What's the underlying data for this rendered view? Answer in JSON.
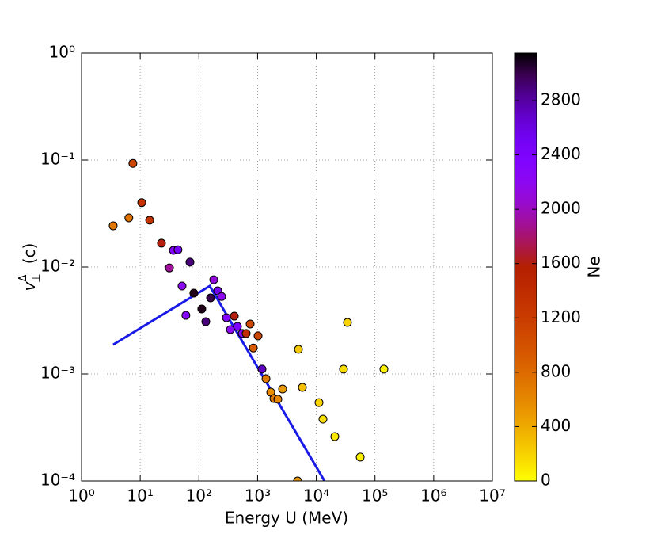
{
  "chart_data": {
    "type": "scatter",
    "xlabel": "Energy U (MeV)",
    "ylabel": {
      "symbol": "v",
      "superscript": "Δ",
      "subscript": "⊥",
      "unit": "(c)"
    },
    "xscale": "log",
    "yscale": "log",
    "xlim": [
      1,
      10000000
    ],
    "ylim": [
      0.0001,
      1
    ],
    "xticks": [
      {
        "value": 1,
        "label": "10⁰"
      },
      {
        "value": 10,
        "label": "10¹"
      },
      {
        "value": 100,
        "label": "10²"
      },
      {
        "value": 1000,
        "label": "10³"
      },
      {
        "value": 10000,
        "label": "10⁴"
      },
      {
        "value": 100000,
        "label": "10⁵"
      },
      {
        "value": 1000000,
        "label": "10⁶"
      },
      {
        "value": 10000000,
        "label": "10⁷"
      }
    ],
    "yticks": [
      {
        "value": 0.0001,
        "label": "10⁻⁴"
      },
      {
        "value": 0.001,
        "label": "10⁻³"
      },
      {
        "value": 0.01,
        "label": "10⁻²"
      },
      {
        "value": 0.1,
        "label": "10⁻¹"
      },
      {
        "value": 1,
        "label": "10⁰"
      }
    ],
    "grid": true,
    "series": [
      {
        "type": "line",
        "color": "#1a1ae6",
        "x": [
          3.46,
          153,
          294,
          13800
        ],
        "values": [
          0.00188,
          0.00664,
          0.0036,
          0.0001
        ]
      },
      {
        "type": "scatter",
        "x": [
          3.46,
          6.4,
          7.5,
          10.6,
          14.5,
          23,
          36.7,
          44,
          31.4,
          70.4,
          51.6,
          82,
          60,
          112,
          131,
          158,
          179,
          209,
          244,
          294,
          401,
          344,
          454,
          547,
          638,
          746,
          1018,
          845,
          1189,
          1390,
          1675,
          1897,
          2214,
          2667,
          4800,
          4966,
          5796,
          11120,
          13000,
          20700,
          29100,
          34000,
          56000,
          142000
        ],
        "values": [
          0.0243,
          0.0288,
          0.093,
          0.04,
          0.0274,
          0.0167,
          0.0143,
          0.0145,
          0.0098,
          0.0111,
          0.00664,
          0.0057,
          0.00353,
          0.00405,
          0.00308,
          0.00514,
          0.0076,
          0.006,
          0.0053,
          0.00336,
          0.00347,
          0.0026,
          0.00278,
          0.00239,
          0.00239,
          0.00293,
          0.00227,
          0.00175,
          0.00111,
          0.000903,
          0.000676,
          0.000589,
          0.00058,
          0.000723,
          0.0001,
          0.0017,
          0.000749,
          0.00054,
          0.000378,
          0.00026,
          0.00111,
          0.00303,
          0.000167,
          0.00111
        ],
        "color_values": [
          700,
          750,
          1100,
          1300,
          1300,
          1600,
          2300,
          2500,
          1900,
          2900,
          2200,
          3100,
          2300,
          3100,
          2900,
          3000,
          2100,
          2500,
          2200,
          2300,
          1600,
          2200,
          2400,
          2300,
          1400,
          1100,
          1100,
          900,
          2700,
          700,
          550,
          700,
          600,
          500,
          500,
          250,
          300,
          200,
          150,
          100,
          150,
          200,
          50,
          50
        ]
      }
    ],
    "colorbar": {
      "label": "Ne",
      "lim": [
        0,
        3150
      ],
      "ticks": [
        0,
        400,
        800,
        1200,
        1600,
        2000,
        2400,
        2800
      ],
      "colormap": "gnuplot_r"
    }
  }
}
